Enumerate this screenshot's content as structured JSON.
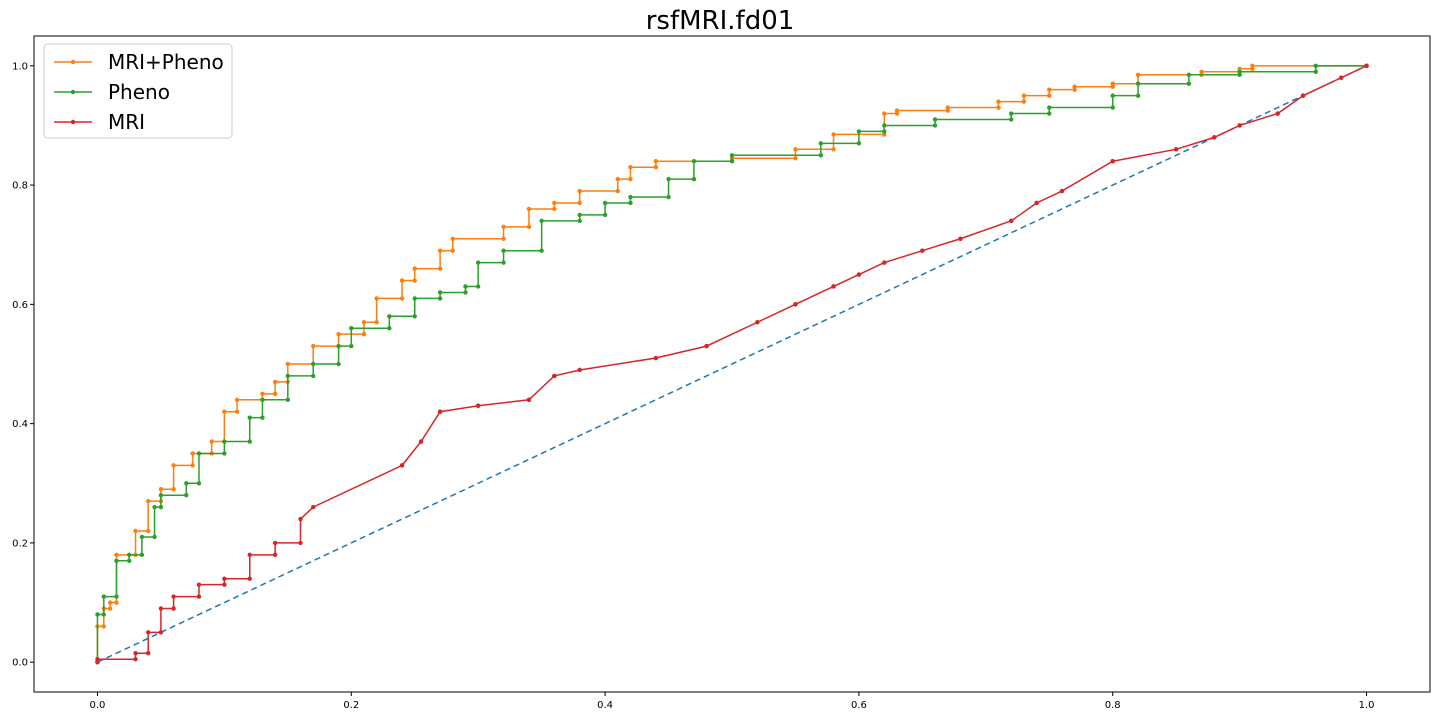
{
  "chart_data": {
    "type": "line",
    "title": "rsfMRI.fd01",
    "xlabel": "",
    "ylabel": "",
    "xlim": [
      -0.05,
      1.05
    ],
    "ylim": [
      -0.05,
      1.05
    ],
    "x_ticks": [
      "0.0",
      "0.2",
      "0.4",
      "0.6",
      "0.8",
      "1.0"
    ],
    "y_ticks": [
      "0.0",
      "0.2",
      "0.4",
      "0.6",
      "0.8",
      "1.0"
    ],
    "x_tick_values": [
      0.0,
      0.2,
      0.4,
      0.6,
      0.8,
      1.0
    ],
    "y_tick_values": [
      0.0,
      0.2,
      0.4,
      0.6,
      0.8,
      1.0
    ],
    "grid": false,
    "legend_position": "top-left",
    "reference_line": {
      "style": "dashed",
      "color": "#1f77b4",
      "x": [
        0.0,
        1.0
      ],
      "y": [
        0.0,
        1.0
      ]
    },
    "series": [
      {
        "name": "MRI+Pheno",
        "color": "#ff7f0e",
        "x": [
          0.0,
          0.0,
          0.005,
          0.005,
          0.01,
          0.01,
          0.015,
          0.015,
          0.03,
          0.03,
          0.04,
          0.04,
          0.05,
          0.05,
          0.06,
          0.06,
          0.075,
          0.075,
          0.09,
          0.09,
          0.1,
          0.1,
          0.11,
          0.11,
          0.13,
          0.13,
          0.14,
          0.14,
          0.15,
          0.15,
          0.17,
          0.17,
          0.19,
          0.19,
          0.21,
          0.21,
          0.22,
          0.22,
          0.24,
          0.24,
          0.25,
          0.25,
          0.27,
          0.27,
          0.28,
          0.28,
          0.32,
          0.32,
          0.34,
          0.34,
          0.36,
          0.36,
          0.38,
          0.38,
          0.41,
          0.41,
          0.42,
          0.42,
          0.44,
          0.44,
          0.5,
          0.5,
          0.55,
          0.55,
          0.58,
          0.58,
          0.62,
          0.62,
          0.63,
          0.63,
          0.67,
          0.67,
          0.71,
          0.71,
          0.73,
          0.73,
          0.75,
          0.75,
          0.77,
          0.77,
          0.8,
          0.8,
          0.82,
          0.82,
          0.87,
          0.87,
          0.9,
          0.9,
          0.91,
          0.91,
          1.0
        ],
        "y": [
          0.0,
          0.06,
          0.06,
          0.09,
          0.09,
          0.1,
          0.1,
          0.18,
          0.18,
          0.22,
          0.22,
          0.27,
          0.27,
          0.29,
          0.29,
          0.33,
          0.33,
          0.35,
          0.35,
          0.37,
          0.37,
          0.42,
          0.42,
          0.44,
          0.44,
          0.45,
          0.45,
          0.47,
          0.47,
          0.5,
          0.5,
          0.53,
          0.53,
          0.55,
          0.55,
          0.57,
          0.57,
          0.61,
          0.61,
          0.64,
          0.64,
          0.66,
          0.66,
          0.69,
          0.69,
          0.71,
          0.71,
          0.73,
          0.73,
          0.76,
          0.76,
          0.77,
          0.77,
          0.79,
          0.79,
          0.81,
          0.81,
          0.83,
          0.83,
          0.84,
          0.84,
          0.845,
          0.845,
          0.86,
          0.86,
          0.885,
          0.885,
          0.92,
          0.92,
          0.925,
          0.925,
          0.93,
          0.93,
          0.94,
          0.94,
          0.95,
          0.95,
          0.96,
          0.96,
          0.965,
          0.965,
          0.97,
          0.97,
          0.985,
          0.985,
          0.99,
          0.99,
          0.995,
          0.995,
          1.0,
          1.0
        ]
      },
      {
        "name": "Pheno",
        "color": "#2ca02c",
        "x": [
          0.0,
          0.0,
          0.005,
          0.005,
          0.015,
          0.015,
          0.025,
          0.025,
          0.035,
          0.035,
          0.045,
          0.045,
          0.05,
          0.05,
          0.07,
          0.07,
          0.08,
          0.08,
          0.1,
          0.1,
          0.12,
          0.12,
          0.13,
          0.13,
          0.15,
          0.15,
          0.17,
          0.17,
          0.19,
          0.19,
          0.2,
          0.2,
          0.23,
          0.23,
          0.25,
          0.25,
          0.27,
          0.27,
          0.29,
          0.29,
          0.3,
          0.3,
          0.32,
          0.32,
          0.35,
          0.35,
          0.38,
          0.38,
          0.4,
          0.4,
          0.42,
          0.42,
          0.45,
          0.45,
          0.47,
          0.47,
          0.5,
          0.5,
          0.57,
          0.57,
          0.6,
          0.6,
          0.62,
          0.62,
          0.66,
          0.66,
          0.72,
          0.72,
          0.75,
          0.75,
          0.8,
          0.8,
          0.82,
          0.82,
          0.86,
          0.86,
          0.9,
          0.9,
          0.96,
          0.96,
          1.0
        ],
        "y": [
          0.0,
          0.08,
          0.08,
          0.11,
          0.11,
          0.17,
          0.17,
          0.18,
          0.18,
          0.21,
          0.21,
          0.26,
          0.26,
          0.28,
          0.28,
          0.3,
          0.3,
          0.35,
          0.35,
          0.37,
          0.37,
          0.41,
          0.41,
          0.44,
          0.44,
          0.48,
          0.48,
          0.5,
          0.5,
          0.53,
          0.53,
          0.56,
          0.56,
          0.58,
          0.58,
          0.61,
          0.61,
          0.62,
          0.62,
          0.63,
          0.63,
          0.67,
          0.67,
          0.69,
          0.69,
          0.74,
          0.74,
          0.75,
          0.75,
          0.77,
          0.77,
          0.78,
          0.78,
          0.81,
          0.81,
          0.84,
          0.84,
          0.85,
          0.85,
          0.87,
          0.87,
          0.89,
          0.89,
          0.9,
          0.9,
          0.91,
          0.91,
          0.92,
          0.92,
          0.93,
          0.93,
          0.95,
          0.95,
          0.97,
          0.97,
          0.985,
          0.985,
          0.99,
          0.99,
          1.0,
          1.0
        ]
      },
      {
        "name": "MRI",
        "color": "#d62728",
        "x": [
          0.0,
          0.0,
          0.03,
          0.03,
          0.04,
          0.04,
          0.05,
          0.05,
          0.06,
          0.06,
          0.08,
          0.08,
          0.1,
          0.1,
          0.12,
          0.12,
          0.14,
          0.14,
          0.16,
          0.16,
          0.17,
          0.24,
          0.24,
          0.255,
          0.255,
          0.27,
          0.27,
          0.3,
          0.3,
          0.34,
          0.34,
          0.36,
          0.36,
          0.38,
          0.38,
          0.44,
          0.44,
          0.48,
          0.48,
          0.52,
          0.52,
          0.55,
          0.55,
          0.58,
          0.58,
          0.6,
          0.6,
          0.62,
          0.62,
          0.65,
          0.65,
          0.68,
          0.68,
          0.72,
          0.72,
          0.74,
          0.74,
          0.76,
          0.76,
          0.8,
          0.8,
          0.85,
          0.85,
          0.88,
          0.88,
          0.9,
          0.9,
          0.93,
          0.93,
          0.95,
          0.95,
          0.98,
          0.98,
          1.0
        ],
        "y": [
          0.0,
          0.005,
          0.005,
          0.015,
          0.015,
          0.05,
          0.05,
          0.09,
          0.09,
          0.11,
          0.11,
          0.13,
          0.13,
          0.14,
          0.14,
          0.18,
          0.18,
          0.2,
          0.2,
          0.24,
          0.26,
          0.33,
          0.33,
          0.37,
          0.37,
          0.42,
          0.42,
          0.43,
          0.43,
          0.44,
          0.44,
          0.48,
          0.48,
          0.49,
          0.49,
          0.51,
          0.51,
          0.53,
          0.53,
          0.57,
          0.57,
          0.6,
          0.6,
          0.63,
          0.63,
          0.65,
          0.65,
          0.67,
          0.67,
          0.69,
          0.69,
          0.71,
          0.71,
          0.74,
          0.74,
          0.77,
          0.77,
          0.79,
          0.79,
          0.84,
          0.84,
          0.86,
          0.86,
          0.88,
          0.88,
          0.9,
          0.9,
          0.92,
          0.92,
          0.95,
          0.95,
          0.98,
          0.98,
          1.0
        ]
      }
    ]
  }
}
